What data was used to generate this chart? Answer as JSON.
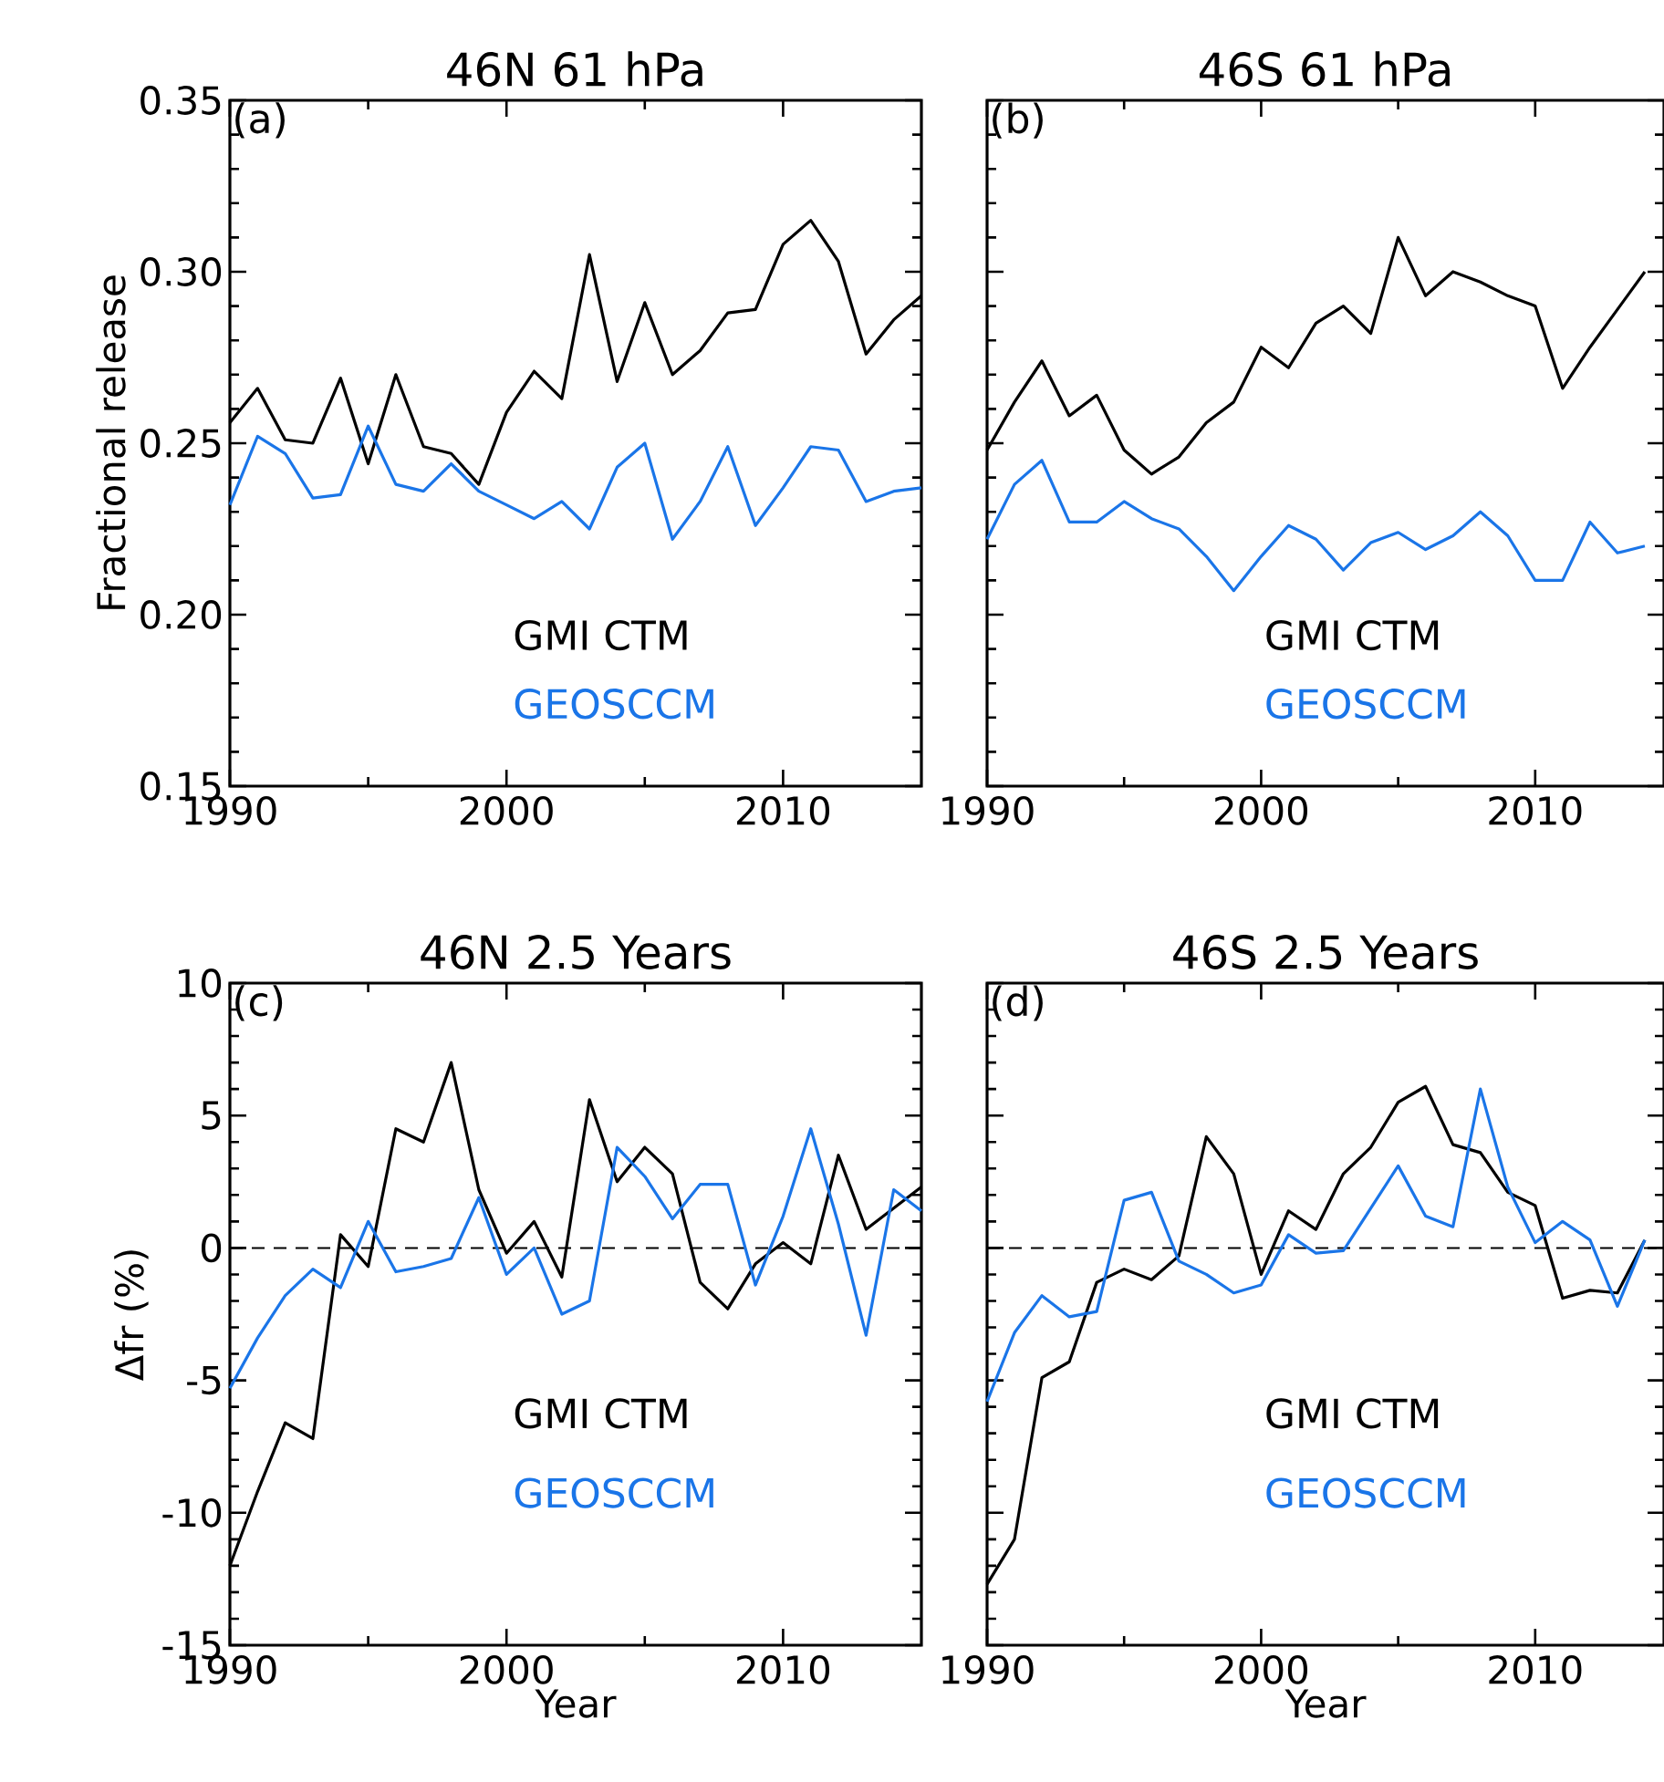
{
  "chart_data": [
    {
      "type": "line",
      "title": "46N 61 hPa",
      "ylabel": "Fractional release",
      "annotations": [
        "(a)"
      ],
      "x": [
        1990,
        1991,
        1992,
        1993,
        1994,
        1995,
        1996,
        1997,
        1998,
        1999,
        2000,
        2001,
        2002,
        2003,
        2004,
        2005,
        2006,
        2007,
        2008,
        2009,
        2010,
        2011,
        2012,
        2013,
        2014,
        2015
      ],
      "xlim": [
        1990,
        2015
      ],
      "xticks": [
        1990,
        2000,
        2010
      ],
      "ylim": [
        0.15,
        0.35
      ],
      "yticks": [
        {
          "value": 0.15,
          "label": "0.15"
        },
        {
          "value": 0.2,
          "label": "0.20"
        },
        {
          "value": 0.25,
          "label": "0.25"
        },
        {
          "value": 0.3,
          "label": "0.30"
        },
        {
          "value": 0.35,
          "label": "0.35"
        }
      ],
      "series": [
        {
          "name": "GMI CTM",
          "color": "#000000",
          "values": [
            0.256,
            0.266,
            0.251,
            0.25,
            0.269,
            0.244,
            0.27,
            0.249,
            0.247,
            0.238,
            0.259,
            0.271,
            0.263,
            0.305,
            0.268,
            0.291,
            0.27,
            0.277,
            0.288,
            0.289,
            0.308,
            0.315,
            0.303,
            0.276,
            0.286,
            0.293
          ]
        },
        {
          "name": "GEOSCCM",
          "color": "#1a75e8",
          "values": [
            0.232,
            0.252,
            0.247,
            0.234,
            0.235,
            0.255,
            0.238,
            0.236,
            0.244,
            0.236,
            0.232,
            0.228,
            0.233,
            0.225,
            0.243,
            0.25,
            0.222,
            0.233,
            0.249,
            0.226,
            0.237,
            0.249,
            0.248,
            0.233,
            0.236,
            0.237
          ]
        }
      ]
    },
    {
      "type": "line",
      "title": "46S 61 hPa",
      "annotations": [
        "(b)"
      ],
      "tick_labels": "x",
      "x": [
        1990,
        1991,
        1992,
        1993,
        1994,
        1995,
        1996,
        1997,
        1998,
        1999,
        2000,
        2001,
        2002,
        2003,
        2004,
        2005,
        2006,
        2007,
        2008,
        2009,
        2010,
        2011,
        2012,
        2013,
        2014
      ],
      "xlim": [
        1990,
        2014.7
      ],
      "xticks": [
        1990,
        2000,
        2010
      ],
      "ylim": [
        0.15,
        0.35
      ],
      "yticks": [
        0.15,
        0.2,
        0.25,
        0.3,
        0.35
      ],
      "series": [
        {
          "name": "GMI CTM",
          "color": "#000000",
          "values": [
            0.248,
            0.262,
            0.274,
            0.258,
            0.264,
            0.248,
            0.241,
            0.246,
            0.256,
            0.262,
            0.278,
            0.272,
            0.285,
            0.29,
            0.282,
            0.31,
            0.293,
            0.3,
            0.297,
            0.293,
            0.29,
            0.266,
            0.278,
            0.289,
            0.3
          ]
        },
        {
          "name": "GEOSCCM",
          "color": "#1a75e8",
          "values": [
            0.222,
            0.238,
            0.245,
            0.227,
            0.227,
            0.233,
            0.228,
            0.225,
            0.217,
            0.207,
            0.217,
            0.226,
            0.222,
            0.213,
            0.221,
            0.224,
            0.219,
            0.223,
            0.23,
            0.223,
            0.21,
            0.21,
            0.227,
            0.218,
            0.22
          ]
        }
      ]
    },
    {
      "type": "line",
      "title": "46N 2.5 Years",
      "xlabel": "Year",
      "ylabel": "Δfr (%)",
      "annotations": [
        "(c)"
      ],
      "x": [
        1990,
        1991,
        1992,
        1993,
        1994,
        1995,
        1996,
        1997,
        1998,
        1999,
        2000,
        2001,
        2002,
        2003,
        2004,
        2005,
        2006,
        2007,
        2008,
        2009,
        2010,
        2011,
        2012,
        2013,
        2014,
        2015
      ],
      "xlim": [
        1990,
        2015
      ],
      "xticks": [
        1990,
        2000,
        2010
      ],
      "ylim": [
        -15,
        10
      ],
      "yticks": [
        -15,
        -10,
        -5,
        0,
        5,
        10
      ],
      "ref_lines": [
        {
          "axis": "y",
          "value": 0,
          "color": "#000000",
          "line_style": "dashed"
        }
      ],
      "series": [
        {
          "name": "GMI CTM",
          "color": "#000000",
          "values": [
            -12.0,
            -9.2,
            -6.6,
            -7.2,
            0.5,
            -0.7,
            4.5,
            4.0,
            7.0,
            2.2,
            -0.2,
            1.0,
            -1.1,
            5.6,
            2.5,
            3.8,
            2.8,
            -1.3,
            -2.3,
            -0.6,
            0.2,
            -0.6,
            3.5,
            0.7,
            1.5,
            2.3
          ]
        },
        {
          "name": "GEOSCCM",
          "color": "#1a75e8",
          "values": [
            -5.3,
            -3.4,
            -1.8,
            -0.8,
            -1.5,
            1.0,
            -0.9,
            -0.7,
            -0.4,
            1.9,
            -1.0,
            0.0,
            -2.5,
            -2.0,
            3.8,
            2.7,
            1.1,
            2.4,
            2.4,
            -1.4,
            1.2,
            4.5,
            0.9,
            -3.3,
            2.2,
            1.4
          ]
        }
      ]
    },
    {
      "type": "line",
      "title": "46S 2.5 Years",
      "xlabel": "Year",
      "annotations": [
        "(d)"
      ],
      "tick_labels": "x",
      "x": [
        1990,
        1991,
        1992,
        1993,
        1994,
        1995,
        1996,
        1997,
        1998,
        1999,
        2000,
        2001,
        2002,
        2003,
        2004,
        2005,
        2006,
        2007,
        2008,
        2009,
        2010,
        2011,
        2012,
        2013,
        2014
      ],
      "xlim": [
        1990,
        2014.7
      ],
      "xticks": [
        1990,
        2000,
        2010
      ],
      "ylim": [
        -15,
        10
      ],
      "yticks": [
        -15,
        -10,
        -5,
        0,
        5,
        10
      ],
      "ref_lines": [
        {
          "axis": "y",
          "value": 0,
          "color": "#000000",
          "line_style": "dashed"
        }
      ],
      "series": [
        {
          "name": "GMI CTM",
          "color": "#000000",
          "values": [
            -12.7,
            -11.0,
            -4.9,
            -4.3,
            -1.3,
            -0.8,
            -1.2,
            -0.3,
            4.2,
            2.8,
            -1.0,
            1.4,
            0.7,
            2.8,
            3.8,
            5.5,
            6.1,
            3.9,
            3.6,
            2.1,
            1.6,
            -1.9,
            -1.6,
            -1.7,
            0.3
          ]
        },
        {
          "name": "GEOSCCM",
          "color": "#1a75e8",
          "values": [
            -5.8,
            -3.2,
            -1.8,
            -2.6,
            -2.4,
            1.8,
            2.1,
            -0.5,
            -1.0,
            -1.7,
            -1.4,
            0.5,
            -0.2,
            -0.1,
            1.5,
            3.1,
            1.2,
            0.8,
            6.0,
            2.3,
            0.2,
            1.0,
            0.3,
            -2.2,
            0.3
          ]
        }
      ]
    }
  ]
}
